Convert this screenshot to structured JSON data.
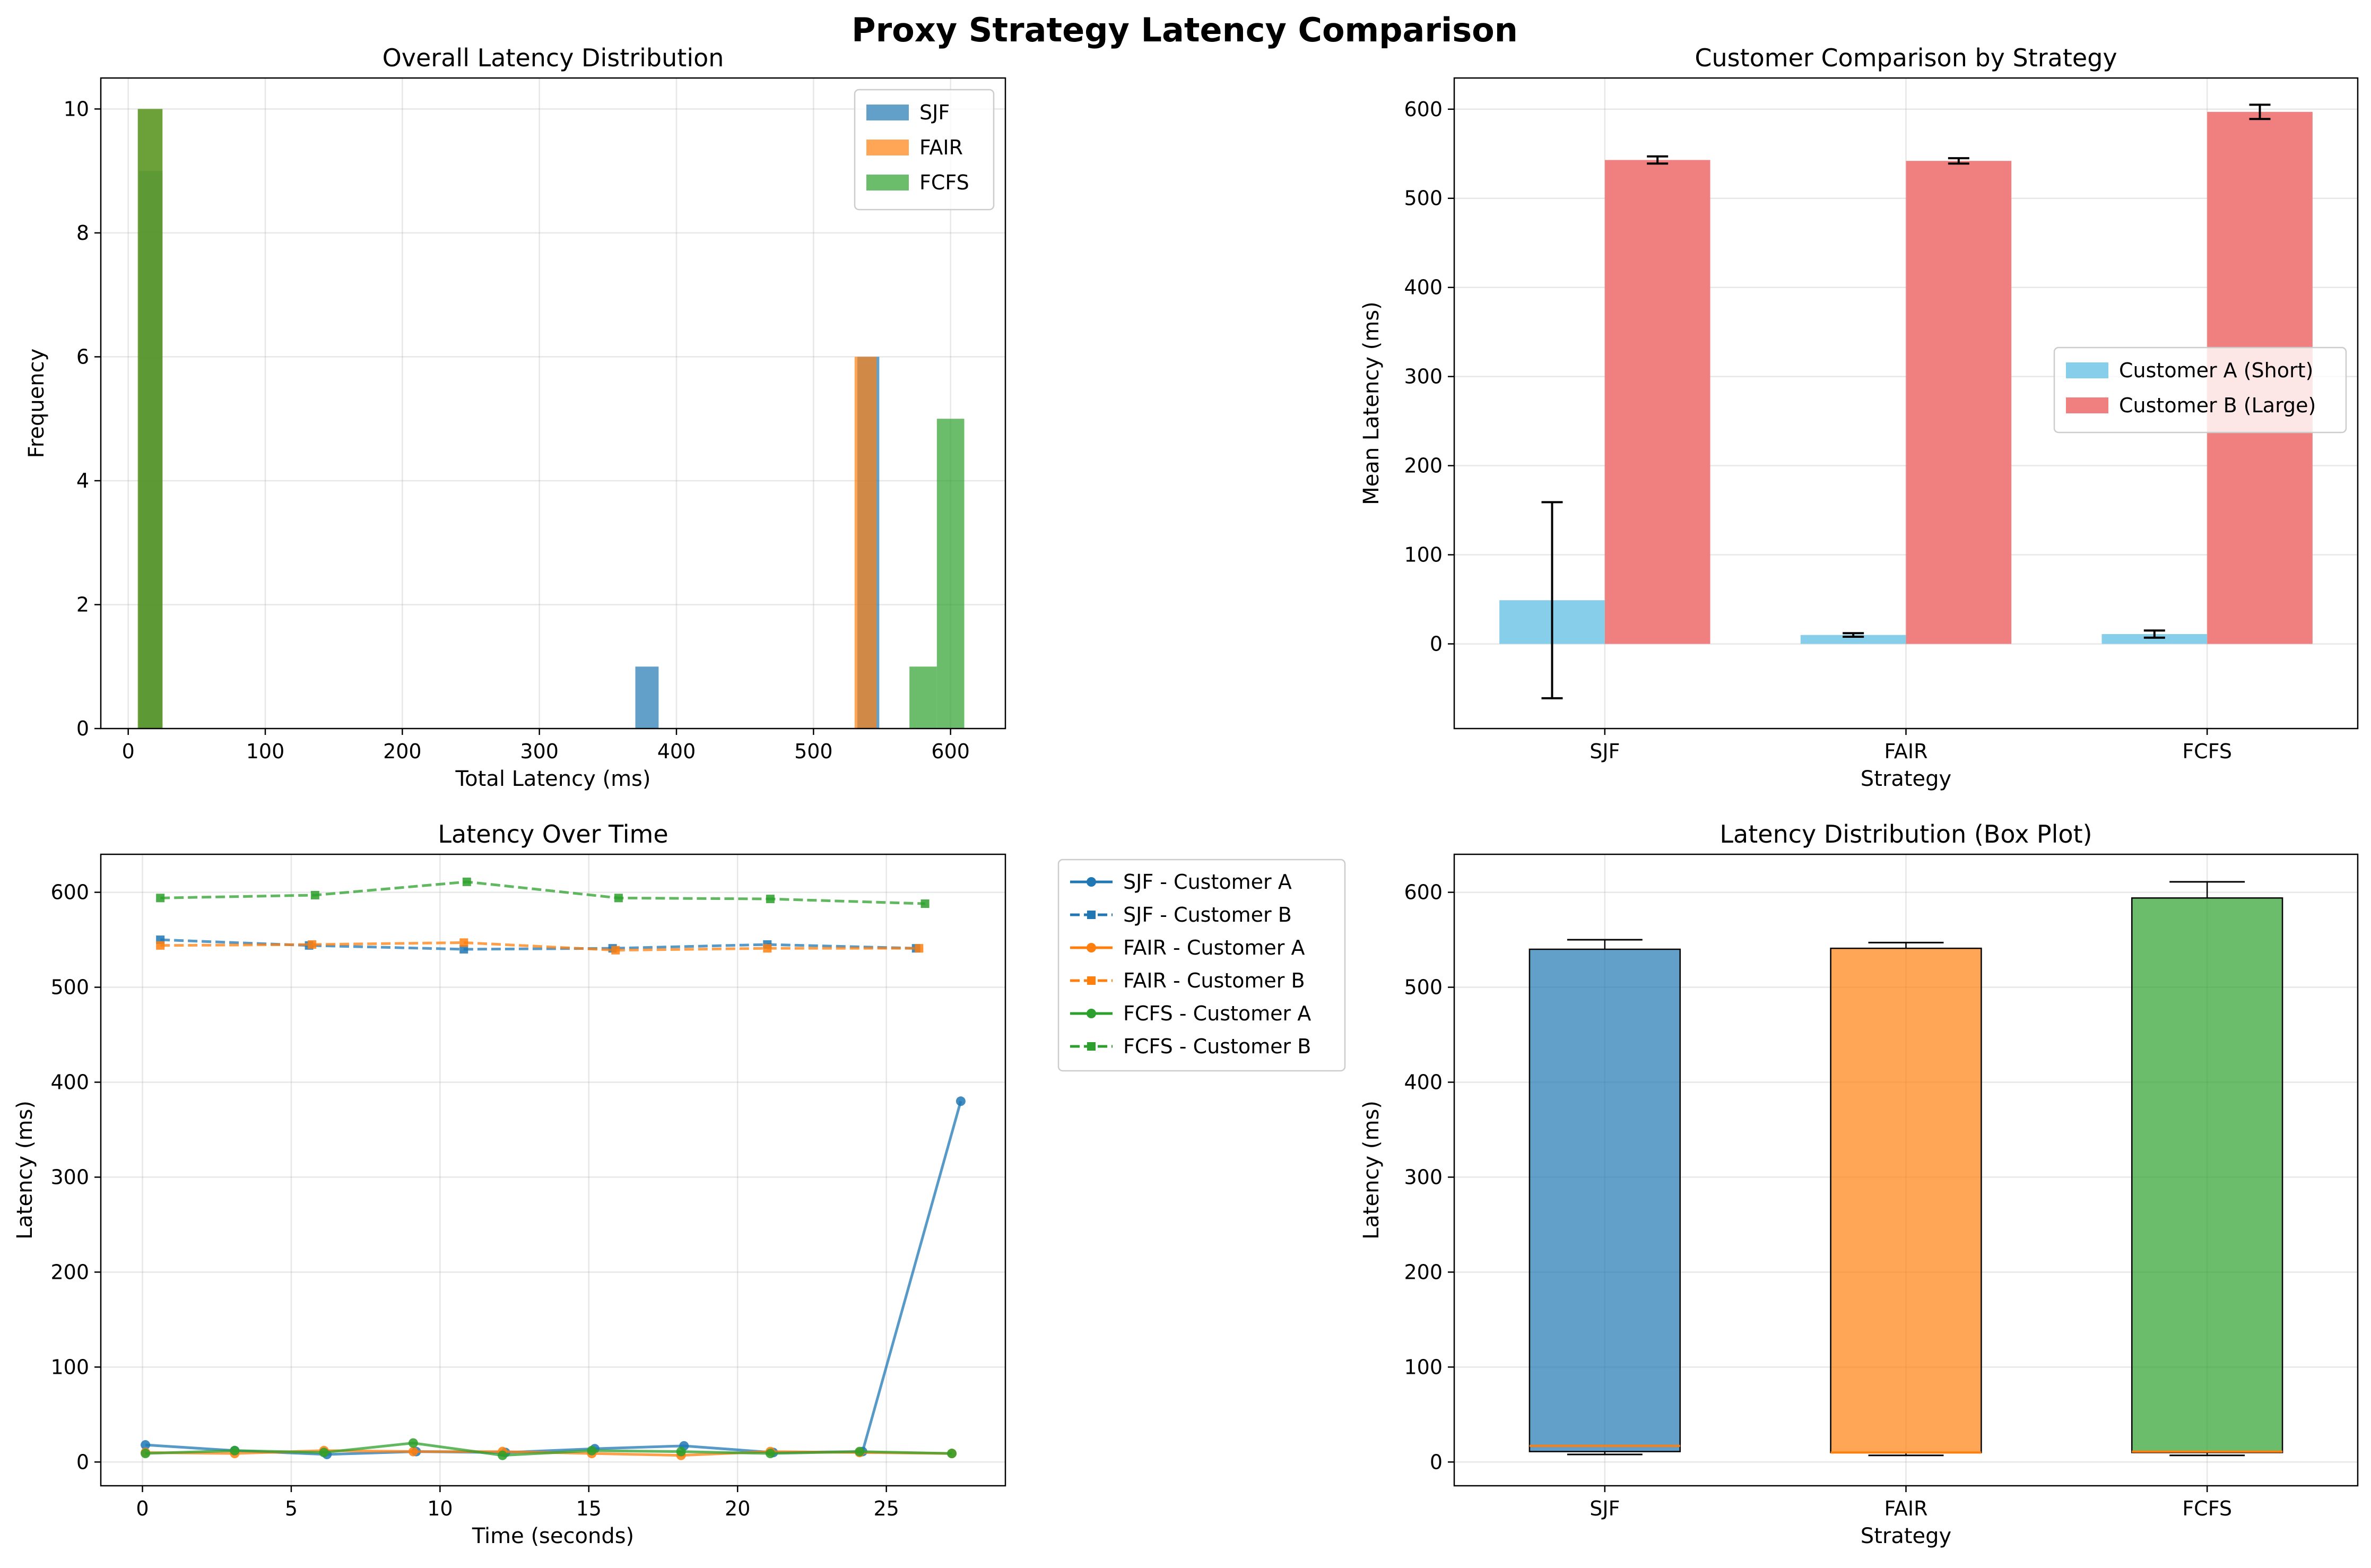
{
  "figure": {
    "title": "Proxy Strategy Latency Comparison"
  },
  "colors": {
    "SJF": "#1f77b4",
    "FAIR": "#ff7f0e",
    "FCFS": "#2ca02c",
    "customer_a": "#87ceeb",
    "customer_b": "#f08080"
  },
  "chart_data": [
    {
      "type": "bar",
      "subtype": "histogram",
      "title": "Overall Latency Distribution",
      "xlabel": "Total Latency (ms)",
      "ylabel": "Frequency",
      "xlim": [
        -20,
        640
      ],
      "ylim": [
        0,
        10.5
      ],
      "xticks": [
        0,
        100,
        200,
        300,
        400,
        500,
        600
      ],
      "yticks": [
        0,
        2,
        4,
        6,
        8,
        10
      ],
      "grid": true,
      "legend": "top-right",
      "series": [
        {
          "name": "SJF",
          "bins": [
            {
              "x0": 8,
              "x1": 25,
              "count": 9
            },
            {
              "x0": 370,
              "x1": 387,
              "count": 1
            },
            {
              "x0": 532,
              "x1": 548,
              "count": 6
            }
          ]
        },
        {
          "name": "FAIR",
          "bins": [
            {
              "x0": 7,
              "x1": 25,
              "count": 10
            },
            {
              "x0": 530,
              "x1": 546,
              "count": 6
            }
          ]
        },
        {
          "name": "FCFS",
          "bins": [
            {
              "x0": 7,
              "x1": 25,
              "count": 10
            },
            {
              "x0": 570,
              "x1": 590,
              "count": 1
            },
            {
              "x0": 590,
              "x1": 610,
              "count": 5
            }
          ]
        }
      ]
    },
    {
      "type": "bar",
      "title": "Customer Comparison by Strategy",
      "xlabel": "Strategy",
      "ylabel": "Mean Latency (ms)",
      "categories": [
        "SJF",
        "FAIR",
        "FCFS"
      ],
      "ylim": [
        -95,
        635
      ],
      "yticks": [
        0,
        100,
        200,
        300,
        400,
        500,
        600
      ],
      "grid": true,
      "legend": "center-right",
      "series": [
        {
          "name": "Customer A (Short)",
          "values": [
            49,
            10,
            11
          ],
          "errors": [
            110,
            2,
            4
          ]
        },
        {
          "name": "Customer B (Large)",
          "values": [
            543,
            542,
            597
          ],
          "errors": [
            4,
            3,
            8
          ]
        }
      ]
    },
    {
      "type": "line",
      "title": "Latency Over Time",
      "xlabel": "Time (seconds)",
      "ylabel": "Latency (ms)",
      "xlim": [
        -1.4,
        29
      ],
      "ylim": [
        -25,
        640
      ],
      "xticks": [
        0,
        5,
        10,
        15,
        20,
        25
      ],
      "yticks": [
        0,
        100,
        200,
        300,
        400,
        500,
        600
      ],
      "grid": true,
      "legend": "outside-right",
      "series": [
        {
          "name": "SJF - Customer A",
          "x": [
            0.1,
            3.1,
            6.2,
            9.2,
            12.2,
            15.2,
            18.2,
            21.2,
            24.2,
            27.5
          ],
          "y": [
            18,
            12,
            8,
            11,
            10,
            14,
            17,
            10,
            11,
            380
          ]
        },
        {
          "name": "SJF - Customer B",
          "x": [
            0.6,
            5.6,
            10.8,
            15.8,
            21.0,
            26.0
          ],
          "y": [
            550,
            544,
            540,
            541,
            545,
            541
          ]
        },
        {
          "name": "FAIR - Customer A",
          "x": [
            0.1,
            3.1,
            6.1,
            9.1,
            12.1,
            15.1,
            18.1,
            21.1,
            24.1,
            27.2
          ],
          "y": [
            10,
            9,
            12,
            11,
            11,
            9,
            7,
            11,
            10,
            9
          ]
        },
        {
          "name": "FAIR - Customer B",
          "x": [
            0.6,
            5.7,
            10.8,
            15.9,
            21.0,
            26.1
          ],
          "y": [
            544,
            545,
            547,
            539,
            541,
            541
          ]
        },
        {
          "name": "FCFS - Customer A",
          "x": [
            0.1,
            3.1,
            6.1,
            9.1,
            12.1,
            15.1,
            18.1,
            21.1,
            24.1,
            27.2
          ],
          "y": [
            9,
            12,
            10,
            20,
            7,
            12,
            11,
            9,
            11,
            9
          ]
        },
        {
          "name": "FCFS - Customer B",
          "x": [
            0.6,
            5.8,
            10.9,
            16.0,
            21.1,
            26.3
          ],
          "y": [
            594,
            597,
            611,
            594,
            593,
            588
          ]
        }
      ]
    },
    {
      "type": "box",
      "title": "Latency Distribution (Box Plot)",
      "xlabel": "Strategy",
      "ylabel": "Latency (ms)",
      "categories": [
        "SJF",
        "FAIR",
        "FCFS"
      ],
      "ylim": [
        -25,
        640
      ],
      "yticks": [
        0,
        100,
        200,
        300,
        400,
        500,
        600
      ],
      "grid": true,
      "boxes": [
        {
          "name": "SJF",
          "whislo": 8,
          "q1": 11,
          "med": 17,
          "q3": 540,
          "whishi": 550
        },
        {
          "name": "FAIR",
          "whislo": 7,
          "q1": 10,
          "med": 10,
          "q3": 541,
          "whishi": 547
        },
        {
          "name": "FCFS",
          "whislo": 7,
          "q1": 10,
          "med": 11,
          "q3": 594,
          "whishi": 611
        }
      ]
    }
  ]
}
